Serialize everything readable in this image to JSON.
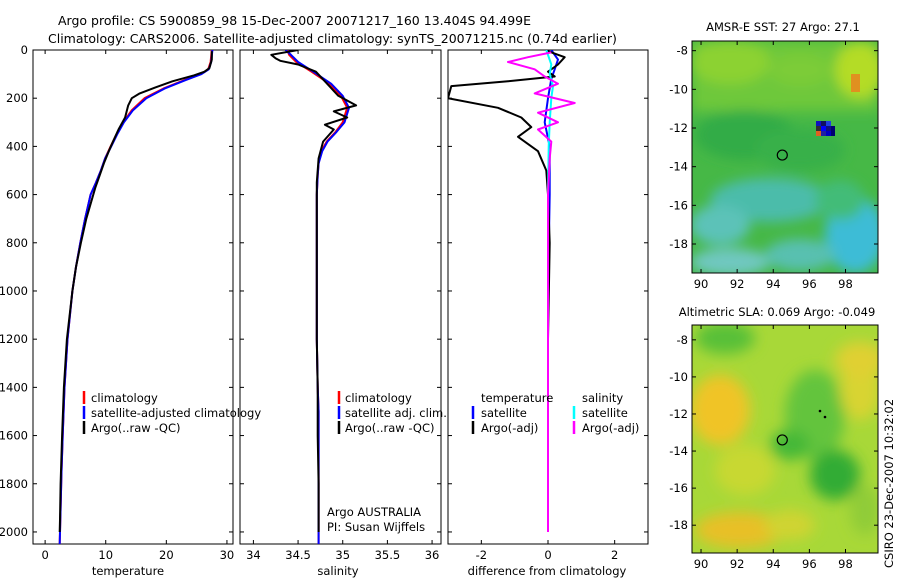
{
  "title_line1": "Argo profile: CS 5900859_98 15-Dec-2007 20071217_160 13.404S 94.499E",
  "title_line2": "Climatology: CARS2006. Satellite-adjusted climatology: synTS_20071215.nc (0.74d earlier)",
  "footer": "CSIRO 23-Dec-2007 10:32:02",
  "institution_line1": "Argo AUSTRALIA",
  "institution_line2": "PI: Susan Wijffels",
  "colors": {
    "climatology": "#ff0000",
    "satellite": "#0000ff",
    "argo": "#000000",
    "satellite_diff": "#00ffff",
    "argo_adj_diff": "#ff00ff"
  },
  "chart_data": [
    {
      "type": "line",
      "id": "temperature",
      "xlabel": "temperature",
      "xlim": [
        -2,
        31
      ],
      "ylim": [
        0,
        2050
      ],
      "y_reversed": true,
      "xticks": [
        0,
        10,
        20,
        30
      ],
      "yticks": [
        0,
        200,
        400,
        600,
        800,
        1000,
        1200,
        1400,
        1600,
        1800,
        2000
      ],
      "legend": [
        "climatology",
        "satellite-adjusted climatology",
        "Argo(..raw -QC)"
      ],
      "series": [
        {
          "name": "climatology",
          "color": "#ff0000",
          "x": [
            27.5,
            27.3,
            26.9,
            25.7,
            23,
            19.5,
            16.4,
            14.3,
            12.9,
            11.8,
            10.8,
            9.9,
            9.2,
            8.4,
            7.5,
            6.6,
            5.8,
            5.1,
            4.5,
            3.7,
            3.2,
            2.9,
            2.7,
            2.55,
            2.45,
            2.4
          ],
          "y": [
            0,
            50,
            80,
            100,
            125,
            160,
            200,
            250,
            300,
            350,
            400,
            450,
            500,
            550,
            600,
            700,
            800,
            900,
            1000,
            1200,
            1400,
            1600,
            1750,
            1900,
            2000,
            2050
          ]
        },
        {
          "name": "satellite-adjusted climatology",
          "color": "#0000ff",
          "x": [
            27.6,
            27.4,
            27.0,
            25.8,
            23.2,
            19.7,
            16.7,
            14.5,
            13.0,
            11.9,
            10.9,
            9.9,
            9.2,
            8.4,
            7.5,
            6.6,
            5.8,
            5.1,
            4.5,
            3.7,
            3.2,
            2.9,
            2.7,
            2.55,
            2.45,
            2.4
          ],
          "y": [
            0,
            50,
            80,
            100,
            125,
            160,
            200,
            250,
            300,
            350,
            400,
            450,
            500,
            550,
            600,
            700,
            800,
            900,
            1000,
            1200,
            1400,
            1600,
            1750,
            1900,
            2000,
            2050
          ]
        },
        {
          "name": "Argo(..raw -QC)",
          "color": "#000000",
          "x": [
            27.5,
            27.5,
            27.1,
            26.3,
            24.6,
            21.0,
            18.2,
            15.6,
            14.3,
            13.7,
            13.2,
            12.1,
            11.2,
            10.5,
            9.7,
            9.0,
            8.3,
            7.6,
            6.8,
            5.9,
            5.1,
            4.5,
            3.6,
            3.1,
            2.8,
            2.55,
            2.45,
            2.4
          ],
          "y": [
            5,
            40,
            75,
            90,
            105,
            130,
            155,
            180,
            200,
            230,
            280,
            330,
            380,
            420,
            470,
            520,
            570,
            630,
            700,
            800,
            900,
            1000,
            1200,
            1400,
            1600,
            1800,
            1950,
            2000
          ]
        }
      ]
    },
    {
      "type": "line",
      "id": "salinity",
      "xlabel": "salinity",
      "xlim": [
        33.85,
        36.1
      ],
      "ylim": [
        0,
        2050
      ],
      "y_reversed": true,
      "xticks": [
        34,
        34.5,
        35,
        35.5,
        36
      ],
      "legend": [
        "climatology",
        "satellite adj. clim.",
        "Argo(..raw -QC)"
      ],
      "series": [
        {
          "name": "climatology",
          "color": "#ff0000",
          "x": [
            34.38,
            34.4,
            34.48,
            34.65,
            34.85,
            34.98,
            35.05,
            35.0,
            34.92,
            34.82,
            34.76,
            34.73,
            34.72,
            34.71,
            34.71,
            34.71,
            34.71,
            34.72,
            34.73,
            34.73,
            34.73,
            34.73,
            34.73
          ],
          "y": [
            0,
            20,
            50,
            90,
            140,
            190,
            240,
            300,
            340,
            380,
            420,
            470,
            520,
            600,
            800,
            1000,
            1200,
            1400,
            1500,
            1600,
            1800,
            2000,
            2050
          ]
        },
        {
          "name": "satellite adj. clim.",
          "color": "#0000ff",
          "x": [
            34.36,
            34.42,
            34.5,
            34.67,
            34.87,
            35.0,
            35.07,
            35.02,
            34.93,
            34.83,
            34.77,
            34.73,
            34.72,
            34.71,
            34.71,
            34.71,
            34.71,
            34.72,
            34.73,
            34.73,
            34.73,
            34.73,
            34.73
          ],
          "y": [
            0,
            20,
            50,
            90,
            140,
            190,
            240,
            300,
            340,
            380,
            420,
            470,
            520,
            600,
            800,
            1000,
            1200,
            1400,
            1500,
            1600,
            1800,
            2000,
            2050
          ]
        },
        {
          "name": "Argo(..raw -QC)",
          "color": "#000000",
          "x": [
            34.5,
            34.2,
            34.25,
            34.3,
            34.5,
            34.7,
            34.85,
            34.95,
            35.15,
            34.9,
            35.05,
            34.8,
            34.9,
            34.78,
            34.73,
            34.71,
            34.71,
            34.71,
            34.71,
            34.72,
            34.72,
            34.73,
            34.73
          ],
          "y": [
            0,
            20,
            35,
            45,
            60,
            90,
            150,
            190,
            230,
            255,
            280,
            310,
            330,
            380,
            450,
            550,
            700,
            1000,
            1200,
            1400,
            1600,
            1800,
            2000
          ]
        }
      ]
    },
    {
      "type": "line",
      "id": "difference",
      "xlabel": "difference from climatology",
      "xlim": [
        -3,
        3
      ],
      "ylim": [
        0,
        2050
      ],
      "y_reversed": true,
      "xticks": [
        -2,
        0,
        2
      ],
      "legend_left": {
        "header": "temperature",
        "items": [
          "satellite",
          "Argo(-adj)"
        ]
      },
      "legend_right": {
        "header": "salinity",
        "items": [
          "satellite",
          "Argo(-adj)"
        ]
      },
      "series": [
        {
          "name": "temperature satellite",
          "color": "#0000ff",
          "x": [
            0.1,
            0.3,
            0.2,
            0.1,
            0,
            -0.1,
            0.05,
            0.05,
            0,
            0,
            0
          ],
          "y": [
            0,
            40,
            80,
            120,
            200,
            300,
            400,
            600,
            1000,
            1600,
            2000
          ]
        },
        {
          "name": "temperature Argo(-adj)",
          "color": "#000000",
          "x": [
            0,
            0.5,
            0.3,
            0,
            0.2,
            -1.2,
            -2.9,
            -3.0,
            -1.5,
            -0.8,
            -0.5,
            -0.9,
            -0.3,
            -0.05,
            0,
            0.05,
            0,
            0
          ],
          "y": [
            5,
            30,
            60,
            90,
            110,
            130,
            150,
            200,
            240,
            280,
            320,
            360,
            420,
            500,
            600,
            800,
            1200,
            2000
          ]
        },
        {
          "name": "salinity satellite",
          "color": "#00ffff",
          "x": [
            -0.05,
            0.1,
            0.05,
            0.15,
            0.1,
            0.05,
            0.02,
            0,
            0,
            0,
            0
          ],
          "y": [
            0,
            60,
            100,
            150,
            200,
            300,
            400,
            600,
            1000,
            1600,
            2000
          ]
        },
        {
          "name": "salinity Argo(-adj)",
          "color": "#ff00ff",
          "x": [
            0.1,
            -0.6,
            -1.2,
            -0.4,
            -0.1,
            0.3,
            -0.4,
            0.8,
            -0.3,
            0.3,
            -0.3,
            0.1,
            0.05,
            0,
            0,
            0
          ],
          "y": [
            10,
            30,
            50,
            80,
            110,
            140,
            180,
            220,
            260,
            300,
            330,
            380,
            450,
            600,
            1000,
            2000
          ]
        }
      ]
    },
    {
      "type": "heatmap",
      "id": "sst",
      "title": "AMSR-E SST: 27 Argo: 27.1",
      "xlim": [
        89.5,
        99.8
      ],
      "ylim": [
        -19.5,
        -7.5
      ],
      "xticks": [
        90,
        92,
        94,
        96,
        98
      ],
      "yticks": [
        -8,
        -10,
        -12,
        -14,
        -16,
        -18
      ],
      "argo_marker": {
        "lon": 94.5,
        "lat": -13.4
      }
    },
    {
      "type": "heatmap",
      "id": "sla",
      "title": "Altimetric SLA: 0.069 Argo: -0.049",
      "xlim": [
        89.5,
        99.8
      ],
      "ylim": [
        -19.5,
        -7.2
      ],
      "xticks": [
        90,
        92,
        94,
        96,
        98
      ],
      "yticks": [
        -8,
        -10,
        -12,
        -14,
        -16,
        -18
      ],
      "argo_marker": {
        "lon": 94.5,
        "lat": -13.4
      }
    }
  ]
}
